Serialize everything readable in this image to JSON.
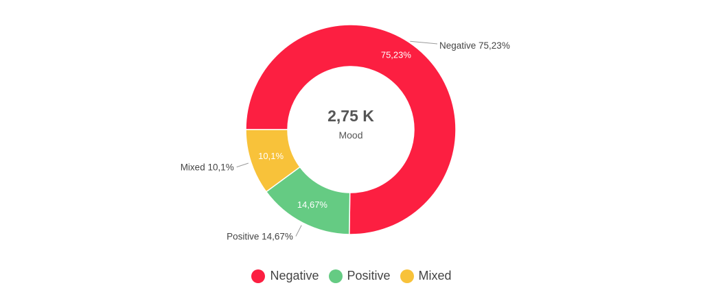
{
  "chart_data": {
    "type": "pie",
    "style": "donut",
    "center_value": "2,75 K",
    "center_label": "Mood",
    "start": "left",
    "direction": "clockwise",
    "slices": [
      {
        "name": "Negative",
        "value": 75.23,
        "label": "75,23%",
        "callout": "Negative 75,23%",
        "color": "#FC1F41"
      },
      {
        "name": "Positive",
        "value": 14.67,
        "label": "14,67%",
        "callout": "Positive 14,67%",
        "color": "#65CB83"
      },
      {
        "name": "Mixed",
        "value": 10.1,
        "label": "10,1%",
        "callout": "Mixed 10,1%",
        "color": "#F8C23A"
      }
    ],
    "legend": {
      "placement": "bottom",
      "items": [
        "Negative",
        "Positive",
        "Mixed"
      ]
    }
  }
}
